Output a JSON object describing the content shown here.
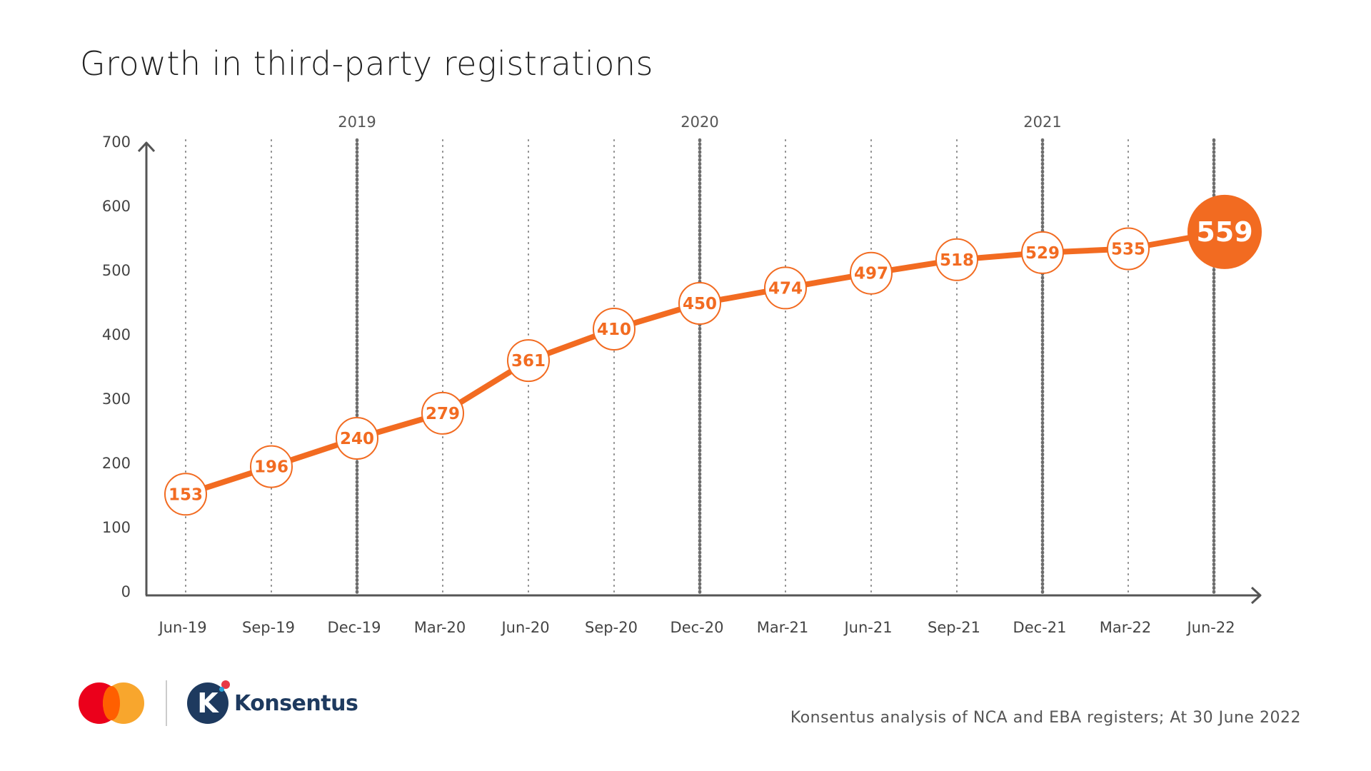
{
  "title": "Growth in third-party registrations",
  "chart_data": {
    "type": "line",
    "title": "Growth in third-party registrations",
    "xlabel": "",
    "ylabel": "",
    "categories": [
      "Jun-19",
      "Sep-19",
      "Dec-19",
      "Mar-20",
      "Jun-20",
      "Sep-20",
      "Dec-20",
      "Mar-21",
      "Jun-21",
      "Sep-21",
      "Dec-21",
      "Mar-22",
      "Jun-22"
    ],
    "values": [
      153,
      196,
      240,
      279,
      361,
      410,
      450,
      474,
      497,
      518,
      529,
      535,
      559
    ],
    "data_labels": [
      "153",
      "196",
      "240",
      "279",
      "361",
      "410",
      "450",
      "474",
      "497",
      "518",
      "529",
      "535",
      "559"
    ],
    "y_ticks": [
      0,
      100,
      200,
      300,
      400,
      500,
      600,
      700
    ],
    "y_tick_labels": [
      "0",
      "100",
      "200",
      "300",
      "400",
      "500",
      "600",
      "700"
    ],
    "ylim": [
      0,
      700
    ],
    "year_markers": [
      {
        "label": "2019",
        "category": "Dec-19"
      },
      {
        "label": "2020",
        "category": "Dec-20"
      },
      {
        "label": "2021",
        "category": "Dec-21"
      }
    ],
    "highlight_last_point": true,
    "grid": "vertical dotted",
    "legend": "none",
    "colors": {
      "line": "#f26b21",
      "marker_fill": "#ffffff",
      "highlight_fill": "#f26b21",
      "highlight_text": "#ffffff",
      "axis": "#555555",
      "gridline": "#777777"
    }
  },
  "footer": {
    "logos": [
      {
        "name": "mastercard-logo",
        "text": ""
      },
      {
        "name": "konsentus-logo",
        "text": "Konsentus"
      }
    ],
    "source_note": "Konsentus analysis of NCA and EBA registers;  At 30 June 2022"
  }
}
